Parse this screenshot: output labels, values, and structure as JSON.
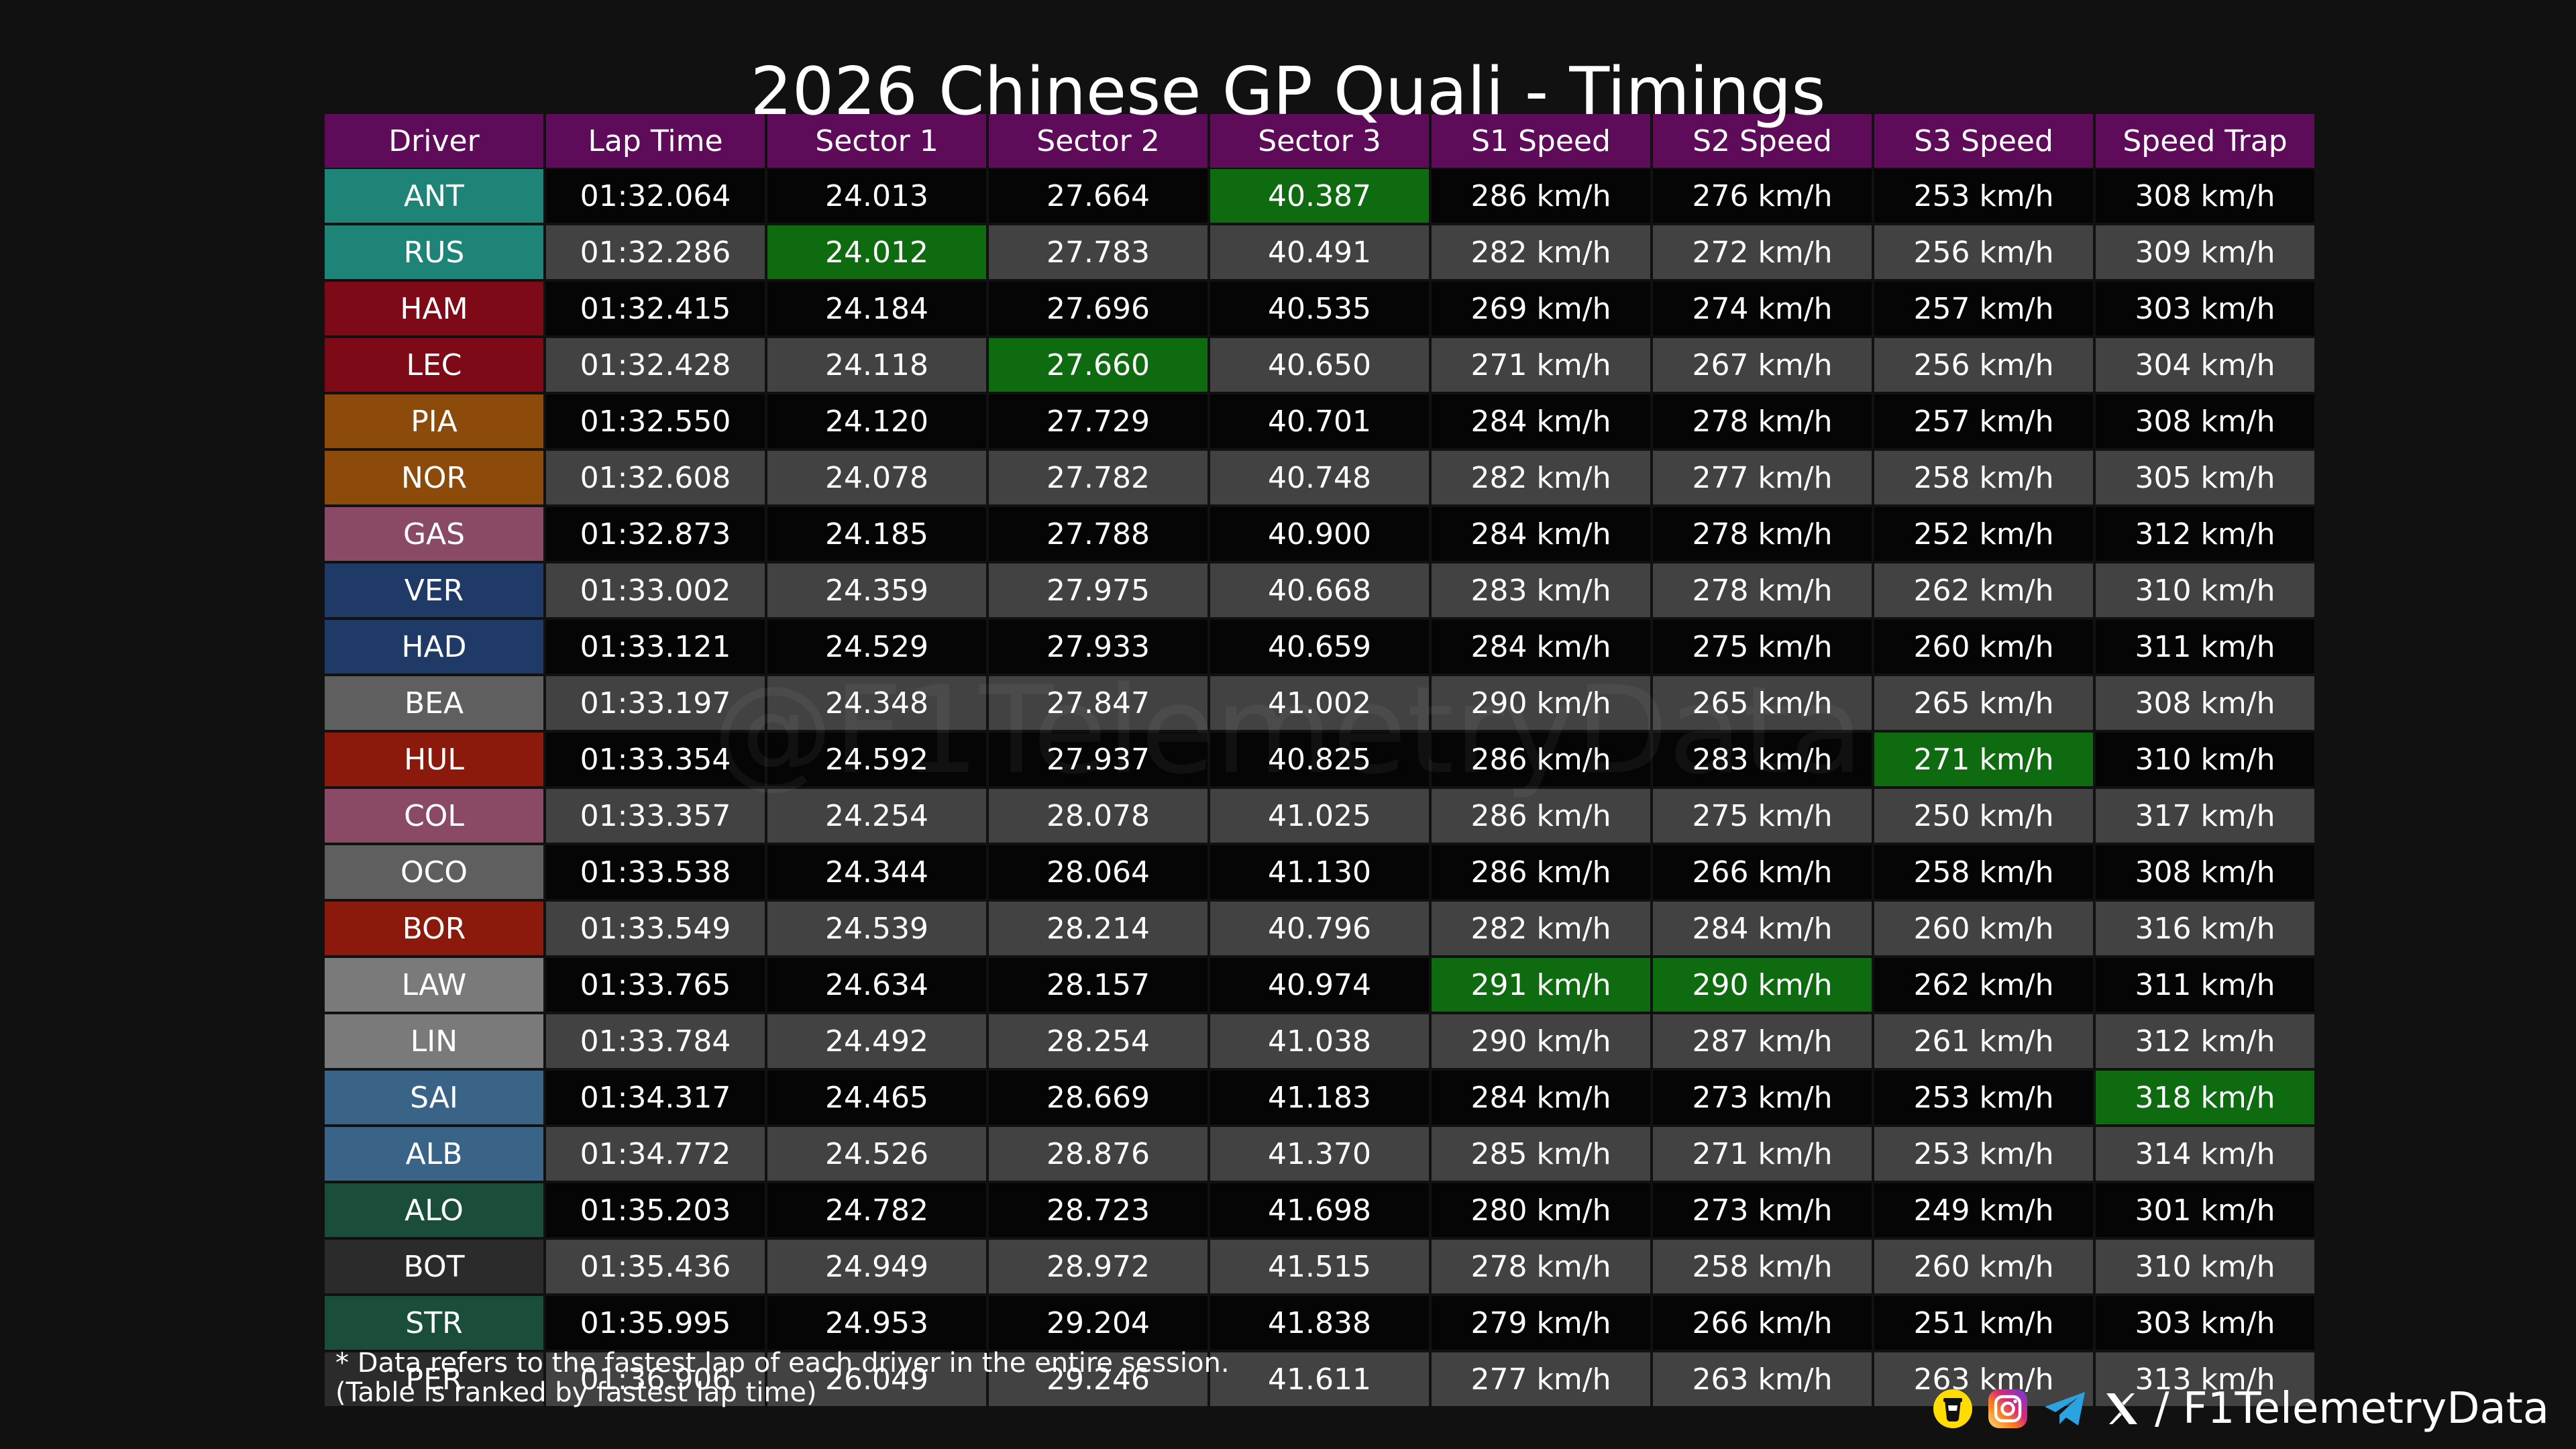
{
  "title": "2026 Chinese GP Quali - Timings",
  "watermark": "@F1TelemetryData",
  "colors": {
    "background": "#111111",
    "header": "#5e0b59",
    "best": "#0f6b0f",
    "row_odd": "#050505",
    "row_even": "#424242"
  },
  "chart_data": {
    "type": "table",
    "title": "2026 Chinese GP Quali - Timings",
    "columns": [
      "Driver",
      "Lap Time",
      "Sector 1",
      "Sector 2",
      "Sector 3",
      "S1 Speed",
      "S2 Speed",
      "S3 Speed",
      "Speed Trap"
    ],
    "rows": [
      {
        "driver": "ANT",
        "color": "#1e8478",
        "values": [
          "01:32.064",
          "24.013",
          "27.664",
          "40.387",
          "286 km/h",
          "276 km/h",
          "253 km/h",
          "308 km/h"
        ]
      },
      {
        "driver": "RUS",
        "color": "#1e8478",
        "values": [
          "01:32.286",
          "24.012",
          "27.783",
          "40.491",
          "282 km/h",
          "272 km/h",
          "256 km/h",
          "309 km/h"
        ]
      },
      {
        "driver": "HAM",
        "color": "#7e0a18",
        "values": [
          "01:32.415",
          "24.184",
          "27.696",
          "40.535",
          "269 km/h",
          "274 km/h",
          "257 km/h",
          "303 km/h"
        ]
      },
      {
        "driver": "LEC",
        "color": "#7e0a18",
        "values": [
          "01:32.428",
          "24.118",
          "27.660",
          "40.650",
          "271 km/h",
          "267 km/h",
          "256 km/h",
          "304 km/h"
        ]
      },
      {
        "driver": "PIA",
        "color": "#8c4b0a",
        "values": [
          "01:32.550",
          "24.120",
          "27.729",
          "40.701",
          "284 km/h",
          "278 km/h",
          "257 km/h",
          "308 km/h"
        ]
      },
      {
        "driver": "NOR",
        "color": "#8c4b0a",
        "values": [
          "01:32.608",
          "24.078",
          "27.782",
          "40.748",
          "282 km/h",
          "277 km/h",
          "258 km/h",
          "305 km/h"
        ]
      },
      {
        "driver": "GAS",
        "color": "#8a4a66",
        "values": [
          "01:32.873",
          "24.185",
          "27.788",
          "40.900",
          "284 km/h",
          "278 km/h",
          "252 km/h",
          "312 km/h"
        ]
      },
      {
        "driver": "VER",
        "color": "#1f3a66",
        "values": [
          "01:33.002",
          "24.359",
          "27.975",
          "40.668",
          "283 km/h",
          "278 km/h",
          "262 km/h",
          "310 km/h"
        ]
      },
      {
        "driver": "HAD",
        "color": "#1f3a66",
        "values": [
          "01:33.121",
          "24.529",
          "27.933",
          "40.659",
          "284 km/h",
          "275 km/h",
          "260 km/h",
          "311 km/h"
        ]
      },
      {
        "driver": "BEA",
        "color": "#5f5f5f",
        "values": [
          "01:33.197",
          "24.348",
          "27.847",
          "41.002",
          "290 km/h",
          "265 km/h",
          "265 km/h",
          "308 km/h"
        ]
      },
      {
        "driver": "HUL",
        "color": "#8c1a0c",
        "values": [
          "01:33.354",
          "24.592",
          "27.937",
          "40.825",
          "286 km/h",
          "283 km/h",
          "271 km/h",
          "310 km/h"
        ]
      },
      {
        "driver": "COL",
        "color": "#8a4a66",
        "values": [
          "01:33.357",
          "24.254",
          "28.078",
          "41.025",
          "286 km/h",
          "275 km/h",
          "250 km/h",
          "317 km/h"
        ]
      },
      {
        "driver": "OCO",
        "color": "#5f5f5f",
        "values": [
          "01:33.538",
          "24.344",
          "28.064",
          "41.130",
          "286 km/h",
          "266 km/h",
          "258 km/h",
          "308 km/h"
        ]
      },
      {
        "driver": "BOR",
        "color": "#8c1a0c",
        "values": [
          "01:33.549",
          "24.539",
          "28.214",
          "40.796",
          "282 km/h",
          "284 km/h",
          "260 km/h",
          "316 km/h"
        ]
      },
      {
        "driver": "LAW",
        "color": "#7a7a7a",
        "values": [
          "01:33.765",
          "24.634",
          "28.157",
          "40.974",
          "291 km/h",
          "290 km/h",
          "262 km/h",
          "311 km/h"
        ]
      },
      {
        "driver": "LIN",
        "color": "#7a7a7a",
        "values": [
          "01:33.784",
          "24.492",
          "28.254",
          "41.038",
          "290 km/h",
          "287 km/h",
          "261 km/h",
          "312 km/h"
        ]
      },
      {
        "driver": "SAI",
        "color": "#3a6487",
        "values": [
          "01:34.317",
          "24.465",
          "28.669",
          "41.183",
          "284 km/h",
          "273 km/h",
          "253 km/h",
          "318 km/h"
        ]
      },
      {
        "driver": "ALB",
        "color": "#3a6487",
        "values": [
          "01:34.772",
          "24.526",
          "28.876",
          "41.370",
          "285 km/h",
          "271 km/h",
          "253 km/h",
          "314 km/h"
        ]
      },
      {
        "driver": "ALO",
        "color": "#1b4e3a",
        "values": [
          "01:35.203",
          "24.782",
          "28.723",
          "41.698",
          "280 km/h",
          "273 km/h",
          "249 km/h",
          "301 km/h"
        ]
      },
      {
        "driver": "BOT",
        "color": "#2b2b2b",
        "values": [
          "01:35.436",
          "24.949",
          "28.972",
          "41.515",
          "278 km/h",
          "258 km/h",
          "260 km/h",
          "310 km/h"
        ]
      },
      {
        "driver": "STR",
        "color": "#1b4e3a",
        "values": [
          "01:35.995",
          "24.953",
          "29.204",
          "41.838",
          "279 km/h",
          "266 km/h",
          "251 km/h",
          "303 km/h"
        ]
      },
      {
        "driver": "PER",
        "color": "#2b2b2b",
        "values": [
          "01:36.906",
          "26.049",
          "29.246",
          "41.611",
          "277 km/h",
          "263 km/h",
          "263 km/h",
          "313 km/h"
        ]
      }
    ],
    "best_cells": [
      {
        "row": 0,
        "column": "Sector 3"
      },
      {
        "row": 1,
        "column": "Sector 1"
      },
      {
        "row": 3,
        "column": "Sector 2"
      },
      {
        "row": 10,
        "column": "S3 Speed"
      },
      {
        "row": 14,
        "column": "S1 Speed"
      },
      {
        "row": 14,
        "column": "S2 Speed"
      },
      {
        "row": 16,
        "column": "Speed Trap"
      }
    ]
  },
  "footnote": {
    "line1": "* Data refers to the fastest lap of each driver in the entire session.",
    "line2": "(Table is ranked by fastest lap time)"
  },
  "branding": {
    "separator": "/",
    "handle": "F1TelemetryData",
    "icons": [
      "buymeacoffee-icon",
      "instagram-icon",
      "telegram-icon",
      "x-icon"
    ]
  }
}
